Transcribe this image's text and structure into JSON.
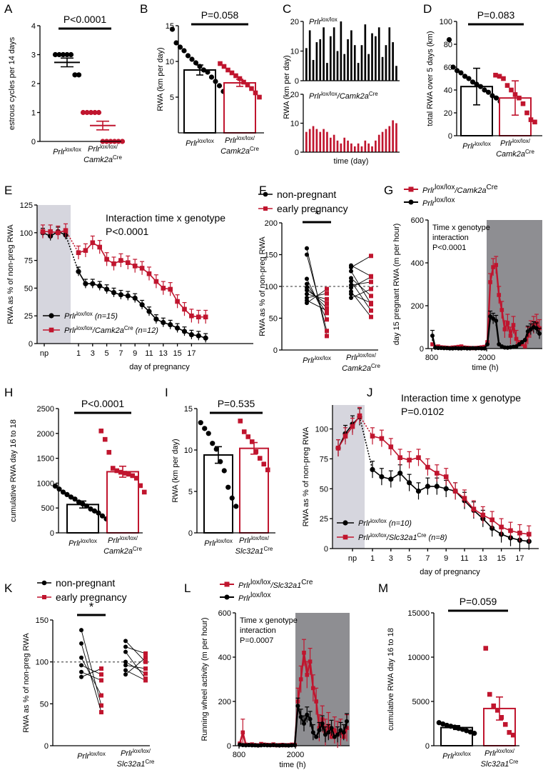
{
  "colors": {
    "black": "#000000",
    "red": "#c0152e",
    "shade": "#d6d6de",
    "dark": "#8e8e92"
  },
  "chart_data": [
    {
      "id": "A",
      "type": "scatter",
      "ylabel": "estrous cycles per 14 days",
      "ylim": [
        0,
        4
      ],
      "yticks": [
        0,
        1,
        2,
        3,
        4
      ],
      "annotation": "P<0.0001",
      "categories": [
        "Prlr|lox/lox",
        "Prlr|lox/lox/|Camk2a|Cre"
      ],
      "series": [
        {
          "name": "Prlr lox/lox",
          "mean": 2.73,
          "sem": 0.15,
          "points": [
            3,
            3,
            3,
            3,
            3,
            2.3,
            2.3
          ]
        },
        {
          "name": "Prlr lox/lox/Camk2a Cre",
          "mean": 0.55,
          "sem": 0.15,
          "points": [
            1,
            1,
            1,
            1,
            1,
            0,
            0,
            0,
            0,
            0,
            0
          ]
        }
      ]
    },
    {
      "id": "B",
      "type": "bar",
      "ylabel": "RWA (km per day)",
      "ylim": [
        0,
        15
      ],
      "yticks": [
        5,
        10,
        15
      ],
      "annotation": "P=0.058",
      "categories": [
        "Prlr|lox/lox",
        "Prlr|lox/lox/|Camk2a|Cre"
      ],
      "series": [
        {
          "name": "Prlr lox/lox",
          "mean": 8.8,
          "sem": 0.7,
          "points": [
            14.5,
            12.6,
            12,
            11.5,
            10.8,
            10.3,
            9.8,
            9.3,
            8.8,
            8.5,
            7.8,
            7.2,
            6.6,
            5.8,
            4.8
          ]
        },
        {
          "name": "Prlr lox/lox/Camk2a Cre",
          "mean": 7.0,
          "sem": 0.5,
          "points": [
            9.7,
            9.3,
            8.8,
            8.4,
            8,
            7.6,
            7.1,
            6.7,
            6.2,
            5.6,
            5
          ]
        }
      ]
    },
    {
      "id": "C",
      "type": "bar",
      "ylabel": "RWA (km per day)",
      "xlabel": "time (day)",
      "panels": [
        {
          "title": "Prlr|lox/lox",
          "ylim": [
            0,
            20
          ],
          "yticks": [
            0,
            10,
            20
          ],
          "values": [
            11,
            17,
            7,
            13,
            14,
            18,
            6,
            15,
            18,
            10,
            20,
            9,
            14,
            17,
            12,
            6,
            12,
            19,
            9,
            16,
            15,
            18,
            8,
            12,
            18,
            13,
            5
          ]
        },
        {
          "title": "Prlr|lox/lox|/Camk2a|Cre",
          "ylim": [
            0,
            20
          ],
          "yticks": [
            0,
            10,
            20
          ],
          "values": [
            7,
            8,
            9,
            8,
            7,
            8,
            7,
            5,
            6,
            4,
            3,
            5,
            4,
            3,
            2,
            3,
            2,
            4,
            3,
            2,
            4,
            6,
            7,
            8,
            9,
            11,
            10
          ]
        }
      ]
    },
    {
      "id": "D",
      "type": "bar",
      "ylabel": "total RWA over 5 days (km)",
      "ylim": [
        0,
        100
      ],
      "yticks": [
        0,
        20,
        40,
        60,
        80,
        100
      ],
      "annotation": "P=0.083",
      "categories": [
        "Prlr|lox/lox",
        "Prlr|lox/lox/|Camk2a|Cre"
      ],
      "series": [
        {
          "name": "Prlr lox/lox",
          "mean": 43,
          "sem": 16,
          "points": [
            84,
            60,
            57,
            55,
            52,
            50,
            47,
            45,
            43,
            40,
            38,
            35,
            33,
            30,
            28
          ]
        },
        {
          "name": "Prlr lox/lox/Camk2a Cre",
          "mean": 33,
          "sem": 15,
          "points": [
            53,
            52,
            50,
            44,
            40,
            36,
            33,
            28,
            20,
            14,
            12
          ]
        }
      ]
    },
    {
      "id": "E",
      "type": "line",
      "ylabel": "RWA as % of non-preg RWA",
      "xlabel": "day of pregnancy",
      "ylim": [
        0,
        125
      ],
      "yticks": [
        0,
        25,
        50,
        75,
        100,
        125
      ],
      "xticks": [
        "np",
        "1",
        "3",
        "5",
        "7",
        "9",
        "11",
        "13",
        "15",
        "17"
      ],
      "annotation": [
        "Interaction time x genotype",
        "P<0.0001"
      ],
      "legend": [
        "Prlr|lox/lox| (n=15)",
        "Prlr|lox/lox|/Camk2a|Cre| (n=12)"
      ],
      "np_values": {
        "Prlr lox/lox": [
          100,
          97,
          101,
          98
        ],
        "Prlr lox/lox/Camk2a Cre": [
          101,
          101,
          100,
          102
        ]
      },
      "series": [
        {
          "name": "Prlr lox/lox",
          "values": [
            65,
            54,
            54,
            52,
            49,
            46,
            44,
            43,
            41,
            35,
            29,
            22,
            19,
            17,
            14,
            11,
            8,
            7,
            5
          ],
          "sem": 4
        },
        {
          "name": "Prlr lox/lox/Camk2a Cre",
          "values": [
            82,
            84,
            91,
            87,
            76,
            72,
            75,
            73,
            70,
            68,
            63,
            56,
            50,
            49,
            38,
            31,
            25,
            24,
            24
          ],
          "sem": 6
        }
      ]
    },
    {
      "id": "F",
      "type": "line",
      "ylabel": "RWA as % of non-preg RWA",
      "ylim": [
        0,
        200
      ],
      "yticks": [
        0,
        50,
        100,
        150,
        200
      ],
      "annotation": "*",
      "legend": [
        "non-pregnant",
        "early pregnancy"
      ],
      "categories": [
        "Prlr|lox/lox",
        "Prlr|lox/lox/|Camk2a|Cre"
      ],
      "pairs": [
        [
          [
            160,
            22
          ],
          [
            150,
            30
          ],
          [
            112,
            48
          ],
          [
            104,
            58
          ],
          [
            98,
            66
          ],
          [
            94,
            73
          ],
          [
            88,
            80
          ],
          [
            82,
            89
          ],
          [
            78,
            62
          ],
          [
            74,
            96
          ]
        ],
        [
          [
            133,
            116
          ],
          [
            130,
            148
          ],
          [
            124,
            72
          ],
          [
            113,
            85
          ],
          [
            108,
            62
          ],
          [
            102,
            107
          ],
          [
            98,
            115
          ],
          [
            92,
            52
          ],
          [
            88,
            74
          ],
          [
            82,
            96
          ]
        ]
      ]
    },
    {
      "id": "G",
      "type": "line",
      "ylabel": "day 15 pregnant RWA  (m per hour)",
      "xlabel": "time (h)",
      "ylim": [
        0,
        600
      ],
      "yticks": [
        0,
        200,
        400,
        600
      ],
      "xticks": [
        "800",
        "2000"
      ],
      "annotation": [
        "Time x genotype",
        "interaction",
        "P<0.0001"
      ],
      "legend": [
        "Prlr|lox/lox|/Camk2a|Cre",
        "Prlr|lox/lox"
      ],
      "series": [
        {
          "name": "Prlr lox/lox/Camk2a Cre",
          "values": [
            20,
            8,
            10,
            6,
            5,
            4,
            3,
            5,
            6,
            8,
            10,
            5,
            4,
            3,
            2,
            3,
            4,
            6,
            8,
            30,
            310,
            380,
            390,
            250,
            180,
            90,
            120,
            60,
            110,
            45,
            30,
            20,
            10,
            60,
            90,
            110,
            120,
            95
          ],
          "sem": 40
        },
        {
          "name": "Prlr lox/lox",
          "values": [
            60,
            4,
            3,
            3,
            2,
            2,
            1,
            1,
            2,
            1,
            1,
            2,
            1,
            1,
            2,
            1,
            2,
            1,
            1,
            20,
            150,
            140,
            130,
            20,
            10,
            5,
            4,
            6,
            8,
            10,
            20,
            30,
            40,
            80,
            90,
            100,
            95,
            70
          ],
          "sem": 25
        }
      ]
    },
    {
      "id": "H",
      "type": "bar",
      "ylabel": "cumulative RWA day 16 to 18",
      "ylim": [
        0,
        2500
      ],
      "yticks": [
        0,
        500,
        1000,
        1500,
        2000,
        2500
      ],
      "annotation": "P<0.0001",
      "categories": [
        "Prlr|lox/lox",
        "Prlr|lox/lox/|Camk2a|Cre"
      ],
      "series": [
        {
          "name": "Prlr lox/lox",
          "mean": 570,
          "sem": 70,
          "points": [
            940,
            880,
            820,
            770,
            720,
            680,
            620,
            580,
            540,
            480,
            440,
            400,
            340,
            280,
            220
          ]
        },
        {
          "name": "Prlr lox/lox/Camk2a Cre",
          "mean": 1230,
          "sem": 110,
          "points": [
            2050,
            1880,
            1620,
            1300,
            1250,
            1220,
            1200,
            1180,
            1150,
            1100,
            950,
            820
          ]
        }
      ]
    },
    {
      "id": "I",
      "type": "bar",
      "ylabel": "RWA (km per day)",
      "ylim": [
        0,
        15
      ],
      "yticks": [
        0,
        5,
        10,
        15
      ],
      "annotation": "P=0.535",
      "categories": [
        "Prlr|lox/lox",
        "Prlr|lox/lox/|Slc32a1|Cre"
      ],
      "series": [
        {
          "name": "Prlr lox/lox",
          "mean": 9.4,
          "sem": 1.0,
          "points": [
            13.3,
            12.6,
            12,
            10.8,
            10.1,
            8.6,
            7.5,
            5.5,
            4.2,
            3.2
          ]
        },
        {
          "name": "Prlr lox/lox/Slc32a1 Cre",
          "mean": 10.2,
          "sem": 0.7,
          "points": [
            13.5,
            12.2,
            11.6,
            11,
            9.8,
            9,
            8.3,
            7.6
          ]
        }
      ]
    },
    {
      "id": "J",
      "type": "line",
      "ylabel": "RWA as % of non-preg RWA",
      "xlabel": "day of pregnancy",
      "ylim": [
        0,
        120
      ],
      "yticks": [
        0,
        25,
        50,
        75,
        100
      ],
      "xticks": [
        "np",
        "1",
        "3",
        "5",
        "7",
        "9",
        "11",
        "13",
        "15",
        "17"
      ],
      "annotation": [
        "Interaction time x genotype",
        "P=0.0102"
      ],
      "legend": [
        "Prlr|lox/lox| (n=10)",
        "Prlr|lox/lox|/Slc32a1|Cre| (n=8)"
      ],
      "np_values": {
        "Prlr lox/lox": [
          84,
          96,
          104,
          110
        ],
        "Prlr lox/lox/Slc32a1 Cre": [
          84,
          94,
          102,
          111
        ]
      },
      "series": [
        {
          "name": "Prlr lox/lox",
          "values": [
            66,
            60,
            58,
            63,
            55,
            48,
            52,
            52,
            50,
            48,
            40,
            32,
            25,
            17,
            12,
            9,
            7,
            6
          ],
          "sem": 7
        },
        {
          "name": "Prlr lox/lox/Slc32a1 Cre",
          "values": [
            94,
            92,
            85,
            76,
            74,
            76,
            68,
            63,
            60,
            48,
            42,
            33,
            28,
            24,
            18,
            15,
            13,
            12
          ],
          "sem": 7
        }
      ]
    },
    {
      "id": "K",
      "type": "line",
      "ylabel": "RWA as % of non-preg RWA",
      "ylim": [
        0,
        150
      ],
      "yticks": [
        0,
        50,
        100,
        150
      ],
      "annotation": "*",
      "legend": [
        "non-pregnant",
        "early pregnancy"
      ],
      "categories": [
        "Prlr|lox/lox",
        "Prlr|lox/lox/|Slc32a1|Cre"
      ],
      "pairs": [
        [
          [
            138,
            48
          ],
          [
            122,
            40
          ],
          [
            105,
            60
          ],
          [
            96,
            85
          ],
          [
            88,
            78
          ],
          [
            82,
            92
          ]
        ],
        [
          [
            125,
            100
          ],
          [
            118,
            110
          ],
          [
            112,
            80
          ],
          [
            100,
            86
          ],
          [
            96,
            92
          ],
          [
            90,
            78
          ],
          [
            85,
            105
          ]
        ]
      ]
    },
    {
      "id": "L",
      "type": "line",
      "ylabel": "Running wheel activity  (m per hour)",
      "xlabel": "time (h)",
      "ylim": [
        0,
        600
      ],
      "yticks": [
        0,
        200,
        400,
        600
      ],
      "xticks": [
        "800",
        "2000"
      ],
      "annotation": [
        "Time x genotype",
        "interaction",
        "P=0.0007"
      ],
      "legend": [
        "Prlr|lox/lox|/Slc32a1|Cre",
        "Prlr|lox/lox"
      ],
      "series": [
        {
          "name": "Prlr lox/lox/Slc32a1 Cre",
          "values": [
            10,
            60,
            5,
            4,
            6,
            3,
            2,
            8,
            5,
            4,
            3,
            6,
            2,
            3,
            4,
            2,
            3,
            5,
            4,
            200,
            300,
            420,
            320,
            380,
            260,
            200,
            80,
            120,
            60,
            90,
            40,
            70,
            50,
            60,
            40,
            80
          ],
          "sem": 60
        },
        {
          "name": "Prlr lox/lox",
          "values": [
            5,
            3,
            2,
            3,
            2,
            2,
            1,
            2,
            3,
            2,
            2,
            3,
            2,
            1,
            2,
            2,
            1,
            2,
            3,
            180,
            130,
            100,
            140,
            120,
            60,
            40,
            70,
            100,
            50,
            60,
            80,
            40,
            50,
            70,
            60,
            110
          ],
          "sem": 35
        }
      ]
    },
    {
      "id": "M",
      "type": "bar",
      "ylabel": "cumulative RWA day 16 to 18",
      "ylim": [
        0,
        15000
      ],
      "yticks": [
        0,
        5000,
        10000,
        15000
      ],
      "annotation": "P=0.059",
      "categories": [
        "Prlr|lox/lox",
        "Prlr|lox/lox/|Slc32a1|Cre"
      ],
      "series": [
        {
          "name": "Prlr lox/lox",
          "mean": 2050,
          "sem": 220,
          "points": [
            2600,
            2450,
            2300,
            2200,
            2100,
            1950,
            1850,
            1700,
            1550,
            1400
          ]
        },
        {
          "name": "Prlr lox/lox/Slc32a1 Cre",
          "mean": 4200,
          "sem": 1300,
          "points": [
            11000,
            5800,
            4500,
            4000,
            3200,
            2400,
            1500,
            1200
          ]
        }
      ]
    }
  ]
}
